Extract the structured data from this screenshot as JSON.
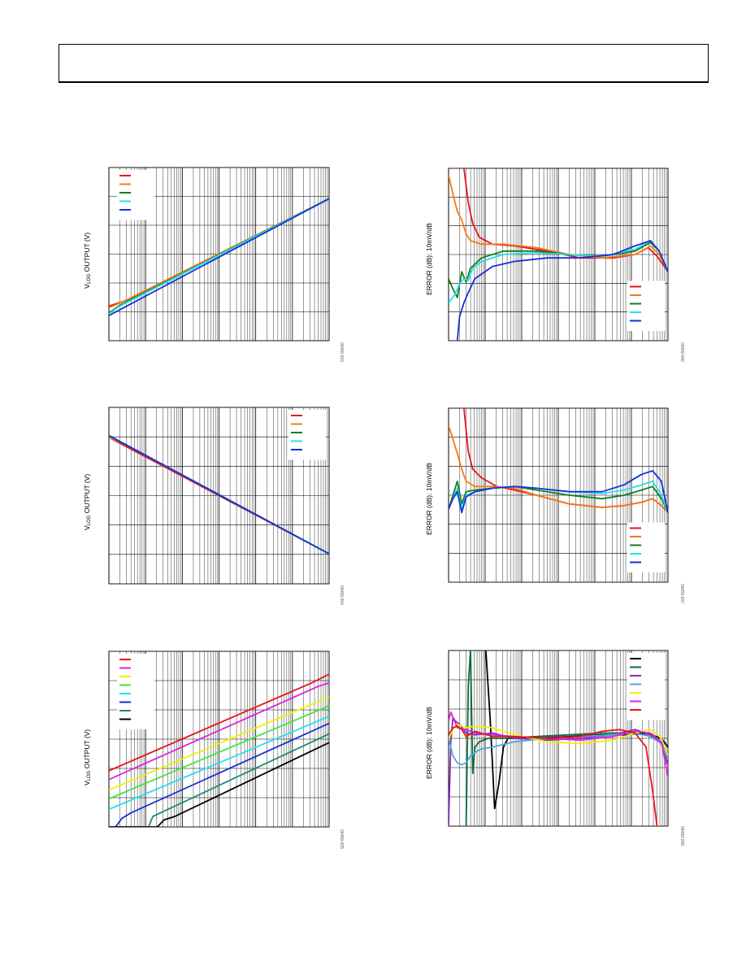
{
  "page": {
    "figure_ids": [
      "09459-003",
      "09459-006",
      "09459-004",
      "09459-007",
      "09459-005",
      "09459-008"
    ]
  },
  "axis_labels": {
    "vlog_main": "V",
    "vlog_sub": "LOG",
    "vlog_rest": " OUTPUT (V)",
    "error": "ERROR (dB): 10mV/dB"
  },
  "colors": {
    "red": "#e8141b",
    "orange": "#f47a16",
    "green": "#127c1e",
    "cyan": "#22e0ee",
    "blue": "#1432d8",
    "magenta": "#e020e0",
    "yellow": "#f0f000",
    "lime": "#3ce83c",
    "teal": "#1e8a7a",
    "black": "#000000",
    "purple": "#8a2ab8",
    "skyblue": "#4aa8e0",
    "maroon": "#b41a1a",
    "darkgreen": "#0d6b3a"
  },
  "chart_data": [
    {
      "id": "fig-a",
      "type": "line",
      "scale": "log-x",
      "ylabel": "VLOG OUTPUT (V)",
      "legend_position": "top-left",
      "xlim": [
        0,
        1
      ],
      "ylim": [
        0,
        1
      ],
      "decades": 6,
      "series": [
        {
          "color": "red",
          "x": [
            0,
            0.06,
            0.12,
            1
          ],
          "y": [
            0.2,
            0.225,
            0.255,
            0.82
          ]
        },
        {
          "color": "orange",
          "x": [
            0,
            0.08,
            1
          ],
          "y": [
            0.19,
            0.235,
            0.82
          ]
        },
        {
          "color": "green",
          "x": [
            0,
            0.05,
            1
          ],
          "y": [
            0.16,
            0.205,
            0.82
          ]
        },
        {
          "color": "cyan",
          "x": [
            0,
            0.05,
            1
          ],
          "y": [
            0.155,
            0.2,
            0.82
          ]
        },
        {
          "color": "blue",
          "x": [
            0,
            1
          ],
          "y": [
            0.145,
            0.82
          ]
        }
      ]
    },
    {
      "id": "fig-b",
      "type": "line",
      "scale": "log-x",
      "ylabel": "ERROR (dB): 10mV/dB",
      "legend_position": "bottom-right",
      "xlim": [
        0,
        1
      ],
      "ylim": [
        0,
        1
      ],
      "decades": 6,
      "series": [
        {
          "color": "red",
          "x": [
            0.07,
            0.09,
            0.11,
            0.14,
            0.2,
            0.3,
            0.45,
            0.6,
            0.75,
            0.85,
            0.91,
            0.95,
            1.0
          ],
          "y": [
            1.0,
            0.8,
            0.68,
            0.6,
            0.56,
            0.55,
            0.52,
            0.48,
            0.48,
            0.5,
            0.54,
            0.49,
            0.4
          ]
        },
        {
          "color": "orange",
          "x": [
            0,
            0.02,
            0.04,
            0.06,
            0.08,
            0.1,
            0.15,
            0.25,
            0.4,
            0.55,
            0.7,
            0.85,
            0.92,
            0.96,
            1.0
          ],
          "y": [
            0.96,
            0.85,
            0.75,
            0.7,
            0.62,
            0.58,
            0.56,
            0.56,
            0.54,
            0.5,
            0.48,
            0.5,
            0.55,
            0.5,
            0.4
          ]
        },
        {
          "color": "green",
          "x": [
            0,
            0.02,
            0.04,
            0.06,
            0.08,
            0.1,
            0.15,
            0.25,
            0.4,
            0.55,
            0.7,
            0.85,
            0.92,
            0.96,
            1.0
          ],
          "y": [
            0.36,
            0.3,
            0.25,
            0.4,
            0.34,
            0.42,
            0.48,
            0.52,
            0.52,
            0.5,
            0.49,
            0.52,
            0.57,
            0.52,
            0.4
          ]
        },
        {
          "color": "cyan",
          "x": [
            0,
            0.03,
            0.05,
            0.07,
            0.09,
            0.11,
            0.15,
            0.25,
            0.4,
            0.55,
            0.7,
            0.85,
            0.92,
            0.96,
            1.0
          ],
          "y": [
            0.22,
            0.27,
            0.33,
            0.36,
            0.35,
            0.42,
            0.46,
            0.5,
            0.51,
            0.5,
            0.49,
            0.53,
            0.58,
            0.52,
            0.4
          ]
        },
        {
          "color": "blue",
          "x": [
            0.04,
            0.05,
            0.07,
            0.09,
            0.12,
            0.2,
            0.3,
            0.45,
            0.6,
            0.75,
            0.85,
            0.92,
            0.96,
            1.0
          ],
          "y": [
            0.0,
            0.14,
            0.22,
            0.28,
            0.36,
            0.43,
            0.46,
            0.48,
            0.48,
            0.5,
            0.55,
            0.58,
            0.52,
            0.4
          ]
        }
      ]
    },
    {
      "id": "fig-c",
      "type": "line",
      "scale": "log-x",
      "ylabel": "VLOG OUTPUT (V)",
      "legend_position": "top-right",
      "xlim": [
        0,
        1
      ],
      "ylim": [
        0,
        1
      ],
      "decades": 6,
      "series": [
        {
          "color": "red",
          "x": [
            0,
            0.06,
            1
          ],
          "y": [
            0.83,
            0.79,
            0.17
          ]
        },
        {
          "color": "orange",
          "x": [
            0,
            0.06,
            1
          ],
          "y": [
            0.83,
            0.8,
            0.17
          ]
        },
        {
          "color": "green",
          "x": [
            0,
            1
          ],
          "y": [
            0.84,
            0.17
          ]
        },
        {
          "color": "cyan",
          "x": [
            0,
            1
          ],
          "y": [
            0.84,
            0.17
          ]
        },
        {
          "color": "blue",
          "x": [
            0,
            1
          ],
          "y": [
            0.84,
            0.17
          ]
        }
      ]
    },
    {
      "id": "fig-d",
      "type": "line",
      "scale": "log-x",
      "ylabel": "ERROR (dB): 10mV/dB",
      "legend_position": "bottom-right",
      "xlim": [
        0,
        1
      ],
      "ylim": [
        0,
        1
      ],
      "decades": 6,
      "series": [
        {
          "color": "red",
          "x": [
            0.07,
            0.09,
            0.11,
            0.15,
            0.22,
            0.3,
            0.4,
            0.55,
            0.7,
            0.8,
            0.88,
            0.93,
            0.97,
            1.0
          ],
          "y": [
            1.0,
            0.75,
            0.65,
            0.6,
            0.55,
            0.53,
            0.5,
            0.45,
            0.43,
            0.44,
            0.46,
            0.48,
            0.44,
            0.4
          ]
        },
        {
          "color": "orange",
          "x": [
            0,
            0.02,
            0.04,
            0.06,
            0.08,
            0.12,
            0.2,
            0.3,
            0.4,
            0.55,
            0.7,
            0.8,
            0.88,
            0.93,
            0.97,
            1.0
          ],
          "y": [
            0.9,
            0.82,
            0.74,
            0.65,
            0.58,
            0.55,
            0.55,
            0.54,
            0.5,
            0.45,
            0.43,
            0.44,
            0.46,
            0.48,
            0.44,
            0.4
          ]
        },
        {
          "color": "green",
          "x": [
            0,
            0.02,
            0.04,
            0.06,
            0.08,
            0.12,
            0.2,
            0.3,
            0.4,
            0.55,
            0.7,
            0.8,
            0.88,
            0.93,
            0.97,
            1.0
          ],
          "y": [
            0.42,
            0.5,
            0.58,
            0.45,
            0.52,
            0.53,
            0.54,
            0.55,
            0.53,
            0.5,
            0.48,
            0.5,
            0.53,
            0.55,
            0.48,
            0.4
          ]
        },
        {
          "color": "cyan",
          "x": [
            0,
            0.02,
            0.04,
            0.06,
            0.08,
            0.12,
            0.2,
            0.3,
            0.4,
            0.55,
            0.7,
            0.8,
            0.88,
            0.93,
            0.97,
            1.0
          ],
          "y": [
            0.42,
            0.48,
            0.54,
            0.42,
            0.5,
            0.52,
            0.54,
            0.55,
            0.54,
            0.52,
            0.51,
            0.53,
            0.56,
            0.58,
            0.5,
            0.4
          ]
        },
        {
          "color": "blue",
          "x": [
            0,
            0.02,
            0.04,
            0.06,
            0.08,
            0.12,
            0.2,
            0.3,
            0.4,
            0.55,
            0.7,
            0.8,
            0.88,
            0.93,
            0.97,
            1.0
          ],
          "y": [
            0.42,
            0.48,
            0.52,
            0.4,
            0.49,
            0.52,
            0.54,
            0.55,
            0.54,
            0.52,
            0.52,
            0.56,
            0.62,
            0.64,
            0.58,
            0.4
          ]
        }
      ]
    },
    {
      "id": "fig-e",
      "type": "line",
      "scale": "log-x",
      "ylabel": "VLOG OUTPUT (V)",
      "legend_position": "top-left",
      "xlim": [
        0,
        1
      ],
      "ylim": [
        0,
        1
      ],
      "decades": 6,
      "series": [
        {
          "color": "red",
          "x": [
            0,
            0.92,
            1
          ],
          "y": [
            0.32,
            0.82,
            0.87
          ]
        },
        {
          "color": "magenta",
          "x": [
            0,
            0.95,
            1
          ],
          "y": [
            0.27,
            0.8,
            0.82
          ]
        },
        {
          "color": "yellow",
          "x": [
            0,
            1
          ],
          "y": [
            0.21,
            0.74
          ]
        },
        {
          "color": "lime",
          "x": [
            0,
            1
          ],
          "y": [
            0.16,
            0.69
          ]
        },
        {
          "color": "cyan",
          "x": [
            0,
            1
          ],
          "y": [
            0.1,
            0.63
          ]
        },
        {
          "color": "blue",
          "x": [
            0,
            0.03,
            0.06,
            0.1,
            1
          ],
          "y": [
            0.0,
            0.0,
            0.05,
            0.08,
            0.59
          ]
        },
        {
          "color": "teal",
          "x": [
            0,
            0.18,
            0.2,
            0.25,
            1
          ],
          "y": [
            0.0,
            0.0,
            0.06,
            0.09,
            0.53
          ]
        },
        {
          "color": "black",
          "x": [
            0,
            0.22,
            0.25,
            0.3,
            1
          ],
          "y": [
            0.0,
            0.0,
            0.04,
            0.06,
            0.48
          ]
        }
      ]
    },
    {
      "id": "fig-f",
      "type": "line",
      "scale": "log-x",
      "ylabel": "ERROR (dB): 10mV/dB",
      "legend_position": "top-right",
      "xlim": [
        0,
        1
      ],
      "ylim": [
        0,
        1
      ],
      "decades": 6,
      "series": [
        {
          "color": "black",
          "x": [
            0.17,
            0.19,
            0.21,
            0.23,
            0.25,
            0.27,
            0.3,
            0.4,
            0.55,
            0.7,
            0.8,
            0.9,
            0.97,
            1.0
          ],
          "y": [
            1.0,
            0.6,
            0.1,
            0.25,
            0.45,
            0.5,
            0.5,
            0.5,
            0.51,
            0.52,
            0.52,
            0.53,
            0.5,
            0.45
          ]
        },
        {
          "color": "darkgreen",
          "x": [
            0.08,
            0.09,
            0.1,
            0.11,
            0.12,
            0.14,
            0.18,
            0.25,
            0.4,
            0.55,
            0.7,
            0.8,
            0.9,
            0.97,
            1.0
          ],
          "y": [
            0.0,
            0.8,
            1.0,
            0.3,
            0.45,
            0.48,
            0.5,
            0.5,
            0.51,
            0.52,
            0.53,
            0.53,
            0.52,
            0.48,
            0.38
          ]
        },
        {
          "color": "purple",
          "x": [
            0,
            0.01,
            0.02,
            0.03,
            0.05,
            0.08,
            0.12,
            0.2,
            0.3,
            0.45,
            0.6,
            0.75,
            0.85,
            0.92,
            0.97,
            1.0
          ],
          "y": [
            0.0,
            0.48,
            0.62,
            0.6,
            0.58,
            0.53,
            0.52,
            0.53,
            0.5,
            0.49,
            0.5,
            0.52,
            0.55,
            0.52,
            0.47,
            0.35
          ]
        },
        {
          "color": "skyblue",
          "x": [
            0,
            0.02,
            0.04,
            0.06,
            0.08,
            0.1,
            0.12,
            0.15,
            0.2,
            0.3,
            0.45,
            0.6,
            0.75,
            0.85,
            0.92,
            0.97,
            1.0
          ],
          "y": [
            0.5,
            0.4,
            0.36,
            0.35,
            0.36,
            0.4,
            0.42,
            0.44,
            0.45,
            0.48,
            0.5,
            0.51,
            0.52,
            0.53,
            0.51,
            0.47,
            0.38
          ]
        },
        {
          "color": "yellow",
          "x": [
            0,
            0.02,
            0.04,
            0.08,
            0.12,
            0.2,
            0.3,
            0.45,
            0.6,
            0.75,
            0.85,
            0.92,
            0.97,
            1.0
          ],
          "y": [
            0.5,
            0.55,
            0.58,
            0.56,
            0.57,
            0.56,
            0.52,
            0.48,
            0.47,
            0.49,
            0.53,
            0.55,
            0.5,
            0.4
          ]
        },
        {
          "color": "magenta",
          "x": [
            0,
            0.01,
            0.02,
            0.04,
            0.08,
            0.12,
            0.2,
            0.3,
            0.45,
            0.6,
            0.75,
            0.85,
            0.92,
            0.97,
            1.0
          ],
          "y": [
            0.6,
            0.65,
            0.62,
            0.56,
            0.55,
            0.53,
            0.52,
            0.51,
            0.5,
            0.49,
            0.51,
            0.54,
            0.53,
            0.48,
            0.28
          ]
        },
        {
          "color": "red",
          "x": [
            0,
            0.02,
            0.04,
            0.06,
            0.08,
            0.12,
            0.2,
            0.3,
            0.45,
            0.6,
            0.7,
            0.78,
            0.85,
            0.9,
            0.93,
            0.95
          ],
          "y": [
            0.52,
            0.56,
            0.57,
            0.55,
            0.51,
            0.54,
            0.51,
            0.51,
            0.5,
            0.51,
            0.54,
            0.55,
            0.53,
            0.45,
            0.2,
            0.0
          ]
        }
      ]
    }
  ]
}
